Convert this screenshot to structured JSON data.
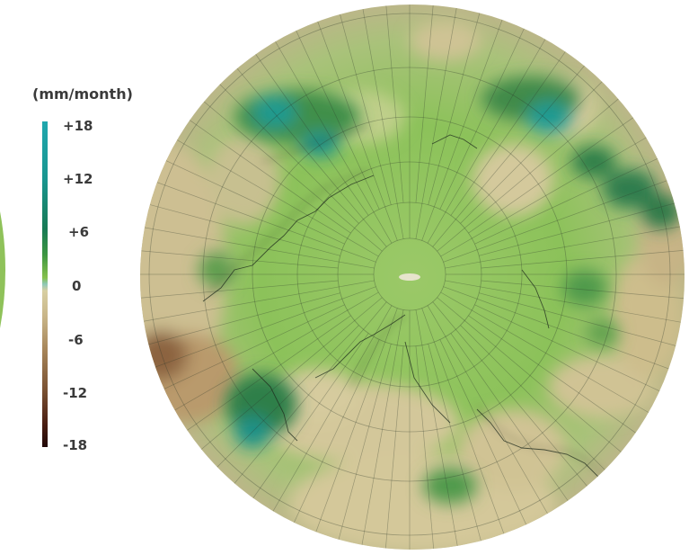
{
  "legend": {
    "title": "(mm/month)",
    "ticks": [
      "+18",
      "+12",
      "+6",
      "0",
      "-6",
      "-12",
      "-18"
    ]
  },
  "colors": {
    "positive_max": "#1fa7ae",
    "positive_mid": "#3d9641",
    "near_zero": "#86c04c",
    "negative_small": "#d8cfa2",
    "negative_mid": "#a7865a",
    "negative_max": "#220808"
  },
  "map": {
    "projection": "north-polar-stereographic"
  }
}
